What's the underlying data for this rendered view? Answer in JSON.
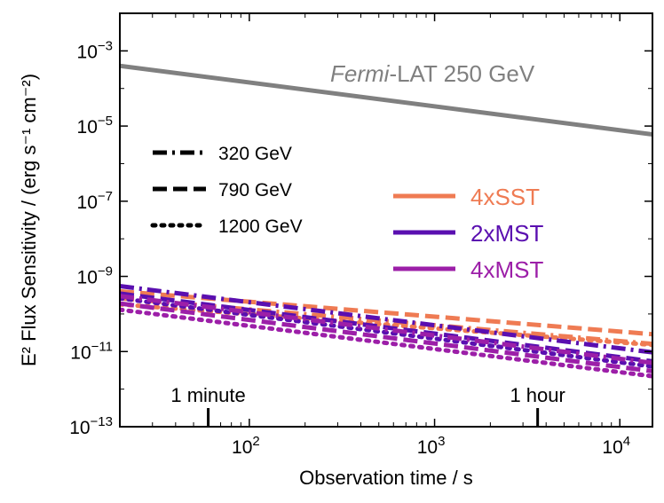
{
  "chart_data": {
    "type": "line",
    "xscale": "log",
    "yscale": "log",
    "xlim": [
      20,
      15000
    ],
    "ylim": [
      1e-13,
      0.01
    ],
    "xlabel": "Observation time / s",
    "ylabel": "E² Flux Sensitivity / (erg s⁻¹ cm⁻²)",
    "x_ticks": [
      {
        "value": 100,
        "base": "10",
        "exp": "2"
      },
      {
        "value": 1000,
        "base": "10",
        "exp": "3"
      },
      {
        "value": 10000,
        "base": "10",
        "exp": "4"
      }
    ],
    "y_ticks": [
      {
        "value": 0.001,
        "base": "10",
        "exp": "−3"
      },
      {
        "value": 1e-05,
        "base": "10",
        "exp": "−5"
      },
      {
        "value": 1e-07,
        "base": "10",
        "exp": "−7"
      },
      {
        "value": 1e-09,
        "base": "10",
        "exp": "−9"
      },
      {
        "value": 1e-11,
        "base": "10",
        "exp": "−11"
      },
      {
        "value": 1e-13,
        "base": "10",
        "exp": "−13"
      }
    ],
    "fermi": {
      "label_italic": "Fermi",
      "label_rest": "-LAT 250 GeV",
      "color": "#808080",
      "x": [
        20,
        15000
      ],
      "y": [
        0.0004,
        6e-06
      ]
    },
    "annotations": [
      {
        "text": "1 minute",
        "x": 60
      },
      {
        "text": "1 hour",
        "x": 3600
      }
    ],
    "energy_legend": [
      {
        "label": "320 GeV",
        "style": "dashdot"
      },
      {
        "label": "790 GeV",
        "style": "dashed"
      },
      {
        "label": "1200 GeV",
        "style": "dotted"
      }
    ],
    "array_legend": [
      {
        "label": "4xSST",
        "color": "#ef7b53"
      },
      {
        "label": "2xMST",
        "color": "#5a0fb0"
      },
      {
        "label": "4xMST",
        "color": "#9c1fa8"
      }
    ],
    "series": [
      {
        "name": "4xSST 320 GeV",
        "array": "4xSST",
        "style": "dashdot",
        "x": [
          20,
          15000
        ],
        "y": [
          2.6e-10,
          1.6e-11
        ]
      },
      {
        "name": "4xSST 790 GeV",
        "array": "4xSST",
        "style": "dashed",
        "x": [
          20,
          15000
        ],
        "y": [
          4e-10,
          2.9e-11
        ]
      },
      {
        "name": "4xSST 1200 GeV",
        "array": "4xSST",
        "style": "dotted",
        "x": [
          20,
          15000
        ],
        "y": [
          1.8e-10,
          1.5e-11
        ]
      },
      {
        "name": "2xMST 320 GeV",
        "array": "2xMST",
        "style": "dashdot",
        "x": [
          20,
          15000
        ],
        "y": [
          5.5e-10,
          9.5e-12
        ]
      },
      {
        "name": "2xMST 790 GeV",
        "array": "2xMST",
        "style": "dashed",
        "x": [
          20,
          15000
        ],
        "y": [
          3.5e-10,
          5.5e-12
        ]
      },
      {
        "name": "2xMST 1200 GeV",
        "array": "2xMST",
        "style": "dotted",
        "x": [
          20,
          15000
        ],
        "y": [
          2.6e-10,
          4e-12
        ]
      },
      {
        "name": "4xMST 320 GeV",
        "array": "4xMST",
        "style": "dashdot",
        "x": [
          20,
          15000
        ],
        "y": [
          3e-10,
          5e-12
        ]
      },
      {
        "name": "4xMST 790 GeV",
        "array": "4xMST",
        "style": "dashed",
        "x": [
          20,
          15000
        ],
        "y": [
          1.9e-10,
          3e-12
        ]
      },
      {
        "name": "4xMST 1200 GeV",
        "array": "4xMST",
        "style": "dotted",
        "x": [
          20,
          15000
        ],
        "y": [
          1.3e-10,
          2.2e-12
        ]
      }
    ]
  }
}
